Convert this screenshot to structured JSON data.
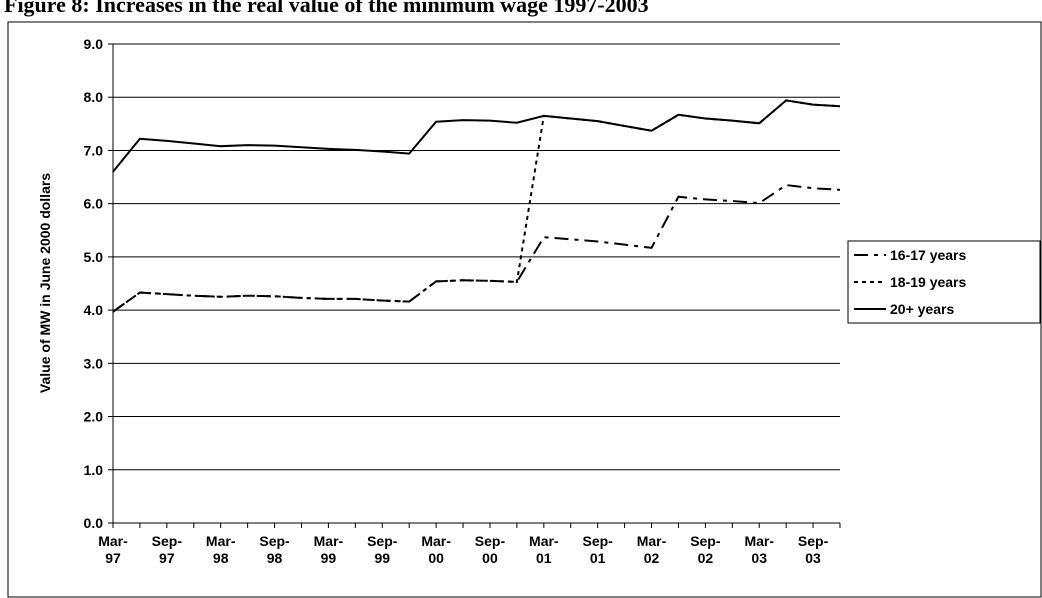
{
  "chart_data": {
    "type": "line",
    "title": "Figure 8: Increases in the real value of the minimum wage 1997-2003",
    "y_label": "Value of MW in June 2000 dollars",
    "categories": [
      "Mar- 97",
      null,
      "Sep- 97",
      null,
      "Mar- 98",
      null,
      "Sep- 98",
      null,
      "Mar- 99",
      null,
      "Sep- 99",
      null,
      "Mar- 00",
      null,
      "Sep- 00",
      null,
      "Mar- 01",
      null,
      "Sep- 01",
      null,
      "Mar- 02",
      null,
      "Sep- 02",
      null,
      "Mar- 03",
      null,
      "Sep- 03",
      null
    ],
    "series": [
      {
        "name": "16-17 years",
        "color": "#000000",
        "linestyle": "dashdot",
        "values": [
          3.97,
          4.33,
          4.3,
          4.27,
          4.25,
          4.27,
          4.26,
          4.23,
          4.21,
          4.21,
          4.18,
          4.16,
          4.54,
          4.56,
          4.55,
          4.53,
          5.37,
          5.33,
          5.29,
          5.23,
          5.17,
          6.13,
          6.08,
          6.05,
          6.01,
          6.35,
          6.29,
          6.26
        ]
      },
      {
        "name": "18-19 years",
        "color": "#000000",
        "linestyle": "dotted",
        "values": [
          3.97,
          4.33,
          4.3,
          4.27,
          4.25,
          4.27,
          4.26,
          4.23,
          4.21,
          4.21,
          4.18,
          4.16,
          4.54,
          4.56,
          4.55,
          4.53,
          7.65,
          7.6,
          7.55,
          7.46,
          7.37,
          7.67,
          7.6,
          7.56,
          7.51,
          7.94,
          7.86,
          7.83
        ]
      },
      {
        "name": "20+ years",
        "color": "#000000",
        "linestyle": "solid",
        "values": [
          6.6,
          7.22,
          7.18,
          7.13,
          7.08,
          7.1,
          7.09,
          7.06,
          7.03,
          7.01,
          6.98,
          6.94,
          7.54,
          7.57,
          7.56,
          7.52,
          7.65,
          7.6,
          7.55,
          7.46,
          7.37,
          7.67,
          7.6,
          7.56,
          7.51,
          7.94,
          7.86,
          7.83
        ]
      }
    ],
    "ylim": [
      0,
      9
    ],
    "yticks": [
      {
        "value": 0,
        "label": "0.0"
      },
      {
        "value": 1,
        "label": "1.0"
      },
      {
        "value": 2,
        "label": "2.0"
      },
      {
        "value": 3,
        "label": "3.0"
      },
      {
        "value": 4,
        "label": "4.0"
      },
      {
        "value": 5,
        "label": "5.0"
      },
      {
        "value": 6,
        "label": "6.0"
      },
      {
        "value": 7,
        "label": "7.0"
      },
      {
        "value": 8,
        "label": "8.0"
      },
      {
        "value": 9,
        "label": "9.0"
      }
    ],
    "grid": true,
    "legend": "right"
  }
}
